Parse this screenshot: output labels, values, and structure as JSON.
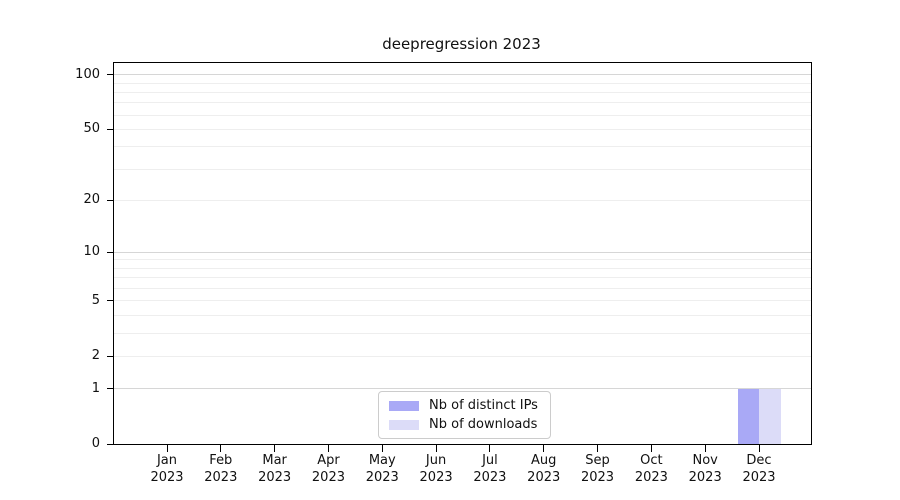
{
  "chart_data": {
    "type": "bar",
    "title": "deepregression 2023",
    "categories": [
      "Jan 2023",
      "Feb 2023",
      "Mar 2023",
      "Apr 2023",
      "May 2023",
      "Jun 2023",
      "Jul 2023",
      "Aug 2023",
      "Sep 2023",
      "Oct 2023",
      "Nov 2023",
      "Dec 2023"
    ],
    "series": [
      {
        "name": "Nb of distinct IPs",
        "color": "#a9a9f6",
        "values": [
          0,
          0,
          0,
          0,
          0,
          0,
          0,
          0,
          0,
          0,
          0,
          1
        ]
      },
      {
        "name": "Nb of downloads",
        "color": "#dcdcf8",
        "values": [
          0,
          0,
          0,
          0,
          0,
          0,
          0,
          0,
          0,
          0,
          0,
          1
        ]
      }
    ],
    "xlabel": "",
    "ylabel": "",
    "y_scale": "log10(1+x)",
    "ylim": [
      0,
      100
    ],
    "y_ticks": [
      0,
      1,
      2,
      5,
      10,
      20,
      50,
      100
    ],
    "grid": "horizontal",
    "grid_values_minor": [
      2,
      3,
      4,
      5,
      6,
      7,
      8,
      9,
      20,
      30,
      40,
      50,
      60,
      70,
      80,
      90
    ],
    "grid_values_major": [
      1,
      10,
      100
    ],
    "legend_position": "bottom-center",
    "colors": {
      "grid_minor": "#eeeeee",
      "grid_major": "#d6d6d6",
      "axis": "#000000",
      "legend_border": "#cccccc",
      "text": "#111111"
    }
  }
}
